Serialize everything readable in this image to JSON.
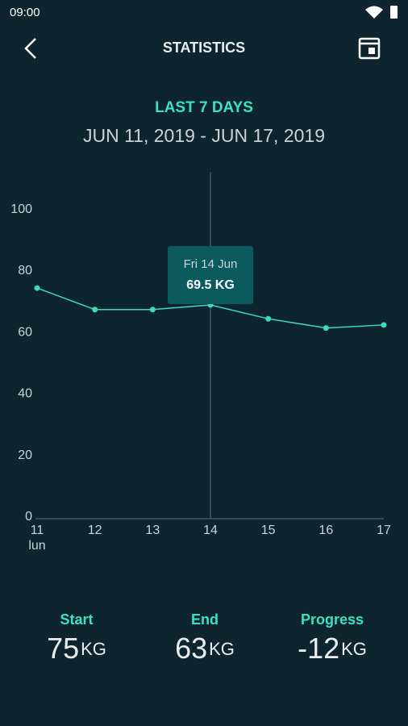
{
  "status_bar": {
    "time": "09:00"
  },
  "header": {
    "title": "STATISTICS"
  },
  "period": {
    "label": "LAST 7 DAYS",
    "range": "JUN 11, 2019 - JUN 17, 2019"
  },
  "chart_data": {
    "type": "line",
    "categories": [
      "11",
      "12",
      "13",
      "14",
      "15",
      "16",
      "17"
    ],
    "first_category_sublabel": "lun",
    "values": [
      75,
      68,
      68,
      69.5,
      65,
      62,
      63
    ],
    "color": "#3dd9c1",
    "ylim": [
      0,
      112
    ],
    "yticks": [
      0,
      20,
      40,
      60,
      80,
      100
    ],
    "grid": false,
    "tooltip": {
      "title": "Fri 14 Jun",
      "value_label": "69.5 KG"
    }
  },
  "stats": [
    {
      "label": "Start",
      "value": 75,
      "unit": "KG"
    },
    {
      "label": "End",
      "value": 63,
      "unit": "KG"
    },
    {
      "label": "Progress",
      "value": -12,
      "unit": "KG"
    }
  ]
}
